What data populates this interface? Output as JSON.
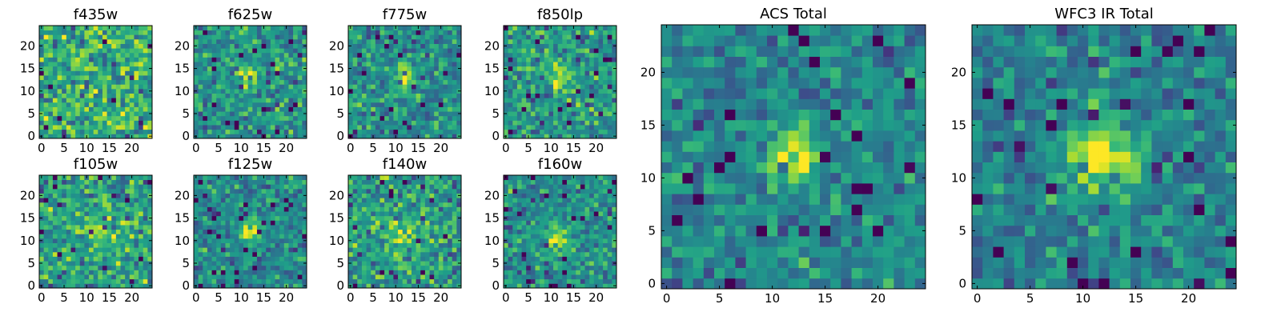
{
  "chart_data": [
    {
      "type": "heatmap",
      "title": "f435w",
      "xticks": [
        "0",
        "5",
        "10",
        "15",
        "20"
      ],
      "yticks": [
        "0",
        "5",
        "10",
        "15",
        "20"
      ],
      "xlim": [
        -0.5,
        24.5
      ],
      "ylim": [
        -0.5,
        24.5
      ],
      "grid_size": 25,
      "colormap": "viridis",
      "peak": [
        12,
        12
      ],
      "peak_strength": 0.0,
      "peak_width": 2.5,
      "noise_seed": 11
    },
    {
      "type": "heatmap",
      "title": "f625w",
      "xticks": [
        "0",
        "5",
        "10",
        "15",
        "20"
      ],
      "yticks": [
        "0",
        "5",
        "10",
        "15",
        "20"
      ],
      "xlim": [
        -0.5,
        24.5
      ],
      "ylim": [
        -0.5,
        24.5
      ],
      "grid_size": 25,
      "colormap": "viridis",
      "peak": [
        12,
        13
      ],
      "peak_strength": 0.35,
      "peak_width": 1.8,
      "noise_seed": 23
    },
    {
      "type": "heatmap",
      "title": "f775w",
      "xticks": [
        "0",
        "5",
        "10",
        "15",
        "20"
      ],
      "yticks": [
        "0",
        "5",
        "10",
        "15",
        "20"
      ],
      "xlim": [
        -0.5,
        24.5
      ],
      "ylim": [
        -0.5,
        24.5
      ],
      "grid_size": 25,
      "colormap": "viridis",
      "peak": [
        12,
        13
      ],
      "peak_strength": 0.4,
      "peak_width": 1.8,
      "noise_seed": 37
    },
    {
      "type": "heatmap",
      "title": "f850lp",
      "xticks": [
        "0",
        "5",
        "10",
        "15",
        "20"
      ],
      "yticks": [
        "0",
        "5",
        "10",
        "15",
        "20"
      ],
      "xlim": [
        -0.5,
        24.5
      ],
      "ylim": [
        -0.5,
        24.5
      ],
      "grid_size": 25,
      "colormap": "viridis",
      "peak": [
        12,
        13
      ],
      "peak_strength": 0.3,
      "peak_width": 2.0,
      "noise_seed": 41
    },
    {
      "type": "heatmap",
      "title": "f105w",
      "xticks": [
        "0",
        "5",
        "10",
        "15",
        "20"
      ],
      "yticks": [
        "0",
        "5",
        "10",
        "15",
        "20"
      ],
      "xlim": [
        -0.5,
        24.5
      ],
      "ylim": [
        -0.5,
        24.5
      ],
      "grid_size": 25,
      "colormap": "viridis",
      "peak": [
        12,
        12
      ],
      "peak_strength": 0.15,
      "peak_width": 3.0,
      "noise_seed": 53
    },
    {
      "type": "heatmap",
      "title": "f125w",
      "xticks": [
        "0",
        "5",
        "10",
        "15",
        "20"
      ],
      "yticks": [
        "0",
        "5",
        "10",
        "15",
        "20"
      ],
      "xlim": [
        -0.5,
        24.5
      ],
      "ylim": [
        -0.5,
        24.5
      ],
      "grid_size": 25,
      "colormap": "viridis",
      "peak": [
        12,
        12
      ],
      "peak_strength": 0.45,
      "peak_width": 1.8,
      "noise_seed": 67
    },
    {
      "type": "heatmap",
      "title": "f140w",
      "xticks": [
        "0",
        "5",
        "10",
        "15",
        "20"
      ],
      "yticks": [
        "0",
        "5",
        "10",
        "15",
        "20"
      ],
      "xlim": [
        -0.5,
        24.5
      ],
      "ylim": [
        -0.5,
        24.5
      ],
      "grid_size": 25,
      "colormap": "viridis",
      "peak": [
        12,
        12
      ],
      "peak_strength": 0.2,
      "peak_width": 2.5,
      "noise_seed": 79
    },
    {
      "type": "heatmap",
      "title": "f160w",
      "xticks": [
        "0",
        "5",
        "10",
        "15",
        "20"
      ],
      "yticks": [
        "0",
        "5",
        "10",
        "15",
        "20"
      ],
      "xlim": [
        -0.5,
        24.5
      ],
      "ylim": [
        -0.5,
        24.5
      ],
      "grid_size": 25,
      "colormap": "viridis",
      "peak": [
        12,
        11
      ],
      "peak_strength": 0.4,
      "peak_width": 2.0,
      "noise_seed": 83
    },
    {
      "type": "heatmap",
      "title": "ACS Total",
      "xticks": [
        "0",
        "5",
        "10",
        "15",
        "20"
      ],
      "yticks": [
        "0",
        "5",
        "10",
        "15",
        "20"
      ],
      "xlim": [
        -0.5,
        24.5
      ],
      "ylim": [
        -0.5,
        24.5
      ],
      "grid_size": 25,
      "colormap": "viridis",
      "peak": [
        12,
        12
      ],
      "peak_strength": 0.55,
      "peak_width": 1.6,
      "noise_seed": 97
    },
    {
      "type": "heatmap",
      "title": "WFC3 IR Total",
      "xticks": [
        "0",
        "5",
        "10",
        "15",
        "20"
      ],
      "yticks": [
        "0",
        "5",
        "10",
        "15",
        "20"
      ],
      "xlim": [
        -0.5,
        24.5
      ],
      "ylim": [
        -0.5,
        24.5
      ],
      "grid_size": 25,
      "colormap": "viridis",
      "peak": [
        12,
        12
      ],
      "peak_strength": 0.55,
      "peak_width": 2.2,
      "noise_seed": 101
    }
  ]
}
